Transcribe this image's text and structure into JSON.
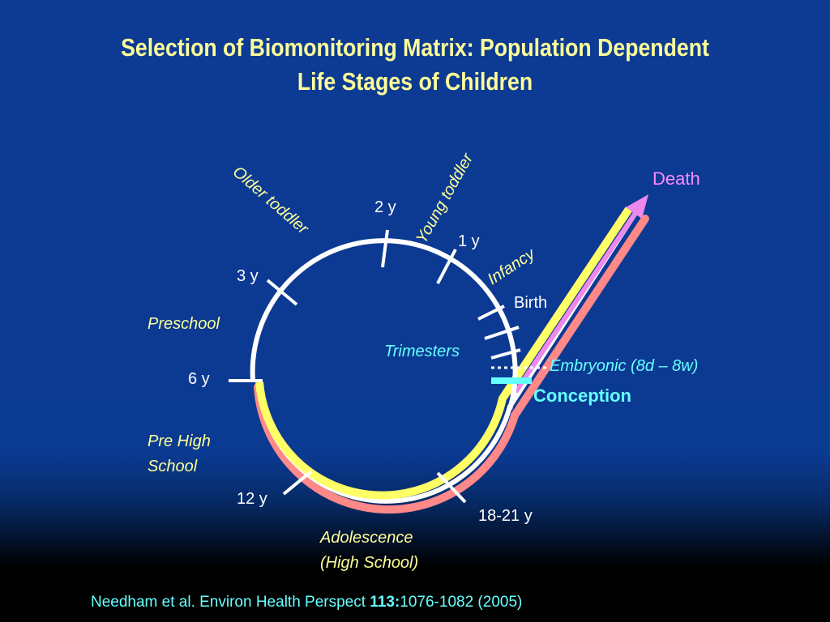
{
  "title": {
    "line1": "Selection of Biomonitoring Matrix: Population Dependent",
    "line2": "Life Stages of Children"
  },
  "ages": {
    "two": "2 y",
    "one": "1 y",
    "three": "3 y",
    "six": "6 y",
    "twelve": "12 y",
    "eighteen": "18-21 y",
    "birth": "Birth"
  },
  "stages": {
    "older_toddler": "Older toddler",
    "young_toddler": "Young toddler",
    "infancy": "Infancy",
    "preschool": "Preschool",
    "trimesters": "Trimesters",
    "pre_high_school_1": "Pre High",
    "pre_high_school_2": "School",
    "adolescence_1": "Adolescence",
    "adolescence_2": "(High School)"
  },
  "events": {
    "death": "Death",
    "embryonic": "Embryonic (8d – 8w)",
    "conception": "Conception"
  },
  "citation": {
    "prefix": "Needham et al. Environ Health Perspect ",
    "volume": "113:",
    "pages": "1076-1082 (2005)"
  },
  "colors": {
    "circle": "#ffffff",
    "stage_text": "#ffff99",
    "cyan": "#66ffff",
    "death": "#ff88ff",
    "yellow_band": "#ffff66",
    "pink_band": "#ff8888",
    "magenta_arrow": "#ee88ee"
  }
}
